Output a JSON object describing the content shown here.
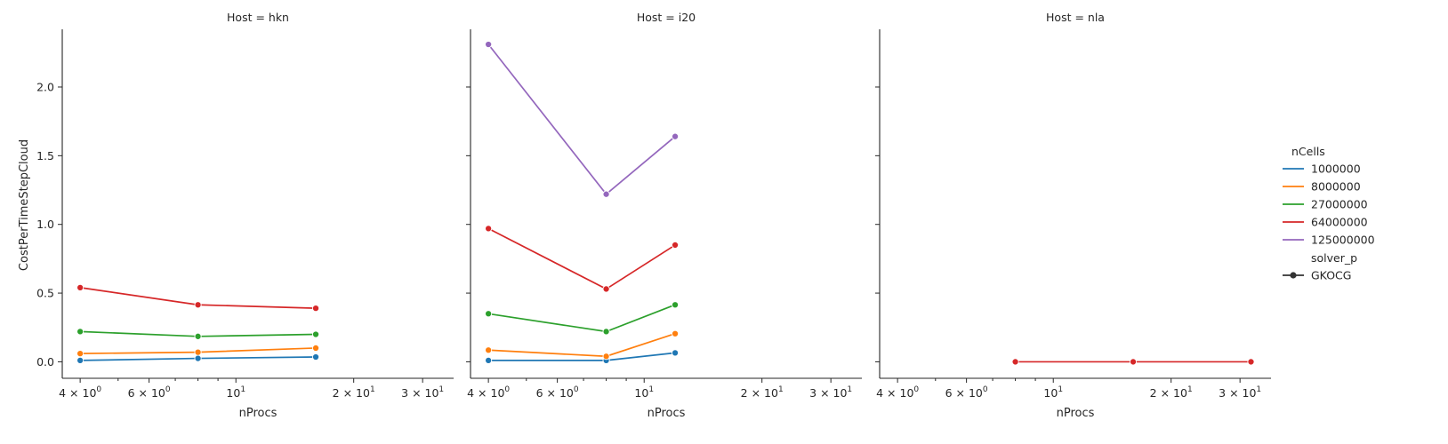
{
  "chart_data": {
    "type": "line",
    "y_label": "CostPerTimeStepCloud",
    "x_label": "nProcs",
    "x_scale": "log",
    "xlim": [
      3.6,
      36
    ],
    "ylim": [
      -0.12,
      2.42
    ],
    "y_ticks": [
      {
        "value": 0.0,
        "label": "0.0"
      },
      {
        "value": 0.5,
        "label": "0.5"
      },
      {
        "value": 1.0,
        "label": "1.0"
      },
      {
        "value": 1.5,
        "label": "1.5"
      },
      {
        "value": 2.0,
        "label": "2.0"
      }
    ],
    "x_major_ticks": [
      {
        "value": 4,
        "base": "4 × 10",
        "exp": "0"
      },
      {
        "value": 6,
        "base": "6 × 10",
        "exp": "0"
      },
      {
        "value": 10,
        "base": "10",
        "exp": "1"
      },
      {
        "value": 20,
        "base": "2 × 10",
        "exp": "1"
      },
      {
        "value": 30,
        "base": "3 × 10",
        "exp": "1"
      }
    ],
    "x_minor_ticks": [
      5,
      7,
      8,
      9
    ],
    "legend": {
      "placement": "right",
      "hue_title": "nCells",
      "hue_entries": [
        {
          "label": "1000000",
          "color": "#1f77b4"
        },
        {
          "label": "8000000",
          "color": "#ff7f0e"
        },
        {
          "label": "27000000",
          "color": "#2ca02c"
        },
        {
          "label": "64000000",
          "color": "#d62728"
        },
        {
          "label": "125000000",
          "color": "#9467bd"
        }
      ],
      "style_title": "solver_p",
      "style_entries": [
        {
          "label": "GKOCG",
          "color": "#333333"
        }
      ]
    },
    "panels": [
      {
        "title": "Host = hkn",
        "series": [
          {
            "hue": "1000000",
            "color": "#1f77b4",
            "x": [
              4,
              8,
              16
            ],
            "y": [
              0.01,
              0.025,
              0.035
            ]
          },
          {
            "hue": "8000000",
            "color": "#ff7f0e",
            "x": [
              4,
              8,
              16
            ],
            "y": [
              0.06,
              0.07,
              0.1
            ]
          },
          {
            "hue": "27000000",
            "color": "#2ca02c",
            "x": [
              4,
              8,
              16
            ],
            "y": [
              0.22,
              0.185,
              0.2
            ]
          },
          {
            "hue": "64000000",
            "color": "#d62728",
            "x": [
              4,
              8,
              16
            ],
            "y": [
              0.54,
              0.415,
              0.39
            ]
          }
        ]
      },
      {
        "title": "Host = i20",
        "series": [
          {
            "hue": "1000000",
            "color": "#1f77b4",
            "x": [
              4,
              8,
              12
            ],
            "y": [
              0.01,
              0.01,
              0.065
            ]
          },
          {
            "hue": "8000000",
            "color": "#ff7f0e",
            "x": [
              4,
              8,
              12
            ],
            "y": [
              0.085,
              0.04,
              0.205
            ]
          },
          {
            "hue": "27000000",
            "color": "#2ca02c",
            "x": [
              4,
              8,
              12
            ],
            "y": [
              0.35,
              0.22,
              0.415
            ]
          },
          {
            "hue": "64000000",
            "color": "#d62728",
            "x": [
              4,
              8,
              12
            ],
            "y": [
              0.97,
              0.53,
              0.85
            ]
          },
          {
            "hue": "125000000",
            "color": "#9467bd",
            "x": [
              4,
              8,
              12
            ],
            "y": [
              2.31,
              1.22,
              1.64
            ]
          }
        ]
      },
      {
        "title": "Host = nla",
        "series": [
          {
            "hue": "64000000",
            "color": "#d62728",
            "x": [
              8,
              16,
              32
            ],
            "y": [
              0.0,
              0.0,
              0.0
            ]
          }
        ]
      }
    ]
  }
}
